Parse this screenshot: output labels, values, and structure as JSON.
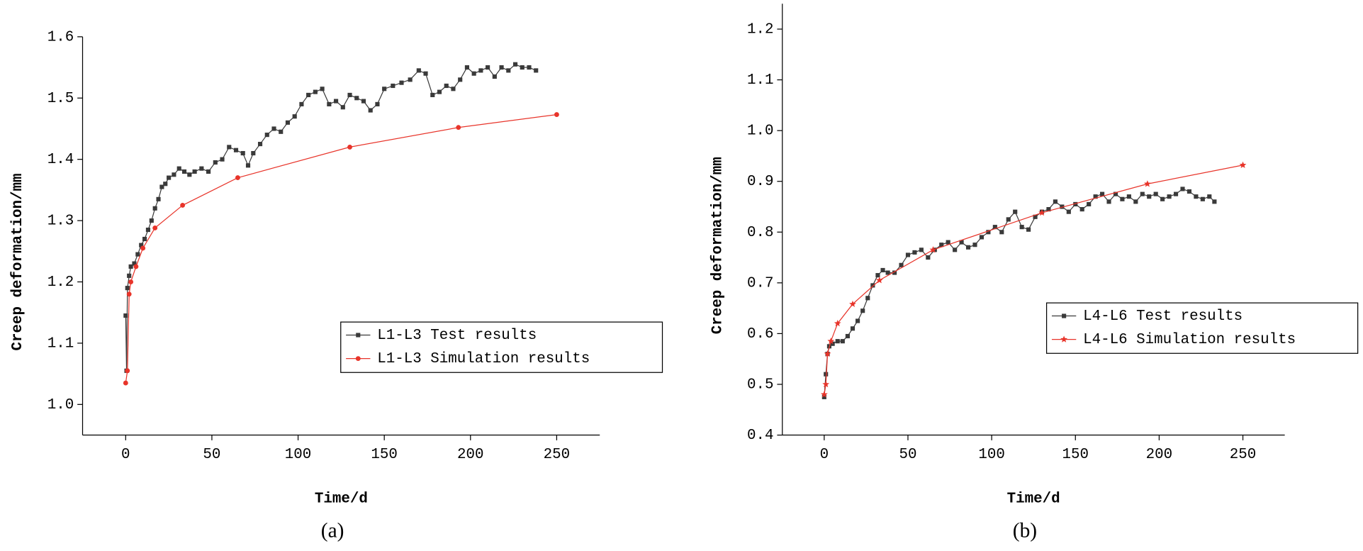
{
  "chart_data": [
    {
      "type": "line",
      "caption": "(a)",
      "xlabel": "Time/d",
      "ylabel": "Creep deformation/mm",
      "xlim": [
        -25,
        275
      ],
      "ylim": [
        0.95,
        1.6
      ],
      "xticks": [
        0,
        50,
        100,
        150,
        200,
        250
      ],
      "yticks": [
        {
          "value": 1,
          "label": "1.0"
        },
        1.1,
        1.2,
        1.3,
        1.4,
        1.5,
        1.6
      ],
      "legend": "center right",
      "series": [
        {
          "name": "L1-L3 Test results",
          "color": "#3a3a3a",
          "marker": "square",
          "x": [
            0,
            0.5,
            1,
            2,
            3,
            5,
            7,
            9,
            11,
            13,
            15,
            17,
            19,
            21,
            23,
            25,
            28,
            31,
            34,
            37,
            40,
            44,
            48,
            52,
            56,
            60,
            64,
            68,
            71,
            74,
            78,
            82,
            86,
            90,
            94,
            98,
            102,
            106,
            110,
            114,
            118,
            122,
            126,
            130,
            134,
            138,
            142,
            146,
            150,
            155,
            160,
            165,
            170,
            174,
            178,
            182,
            186,
            190,
            194,
            198,
            202,
            206,
            210,
            214,
            218,
            222,
            226,
            230,
            234,
            238
          ],
          "values": [
            1.145,
            1.055,
            1.19,
            1.21,
            1.225,
            1.23,
            1.245,
            1.26,
            1.27,
            1.285,
            1.3,
            1.32,
            1.335,
            1.355,
            1.36,
            1.37,
            1.375,
            1.385,
            1.38,
            1.375,
            1.38,
            1.385,
            1.38,
            1.395,
            1.4,
            1.42,
            1.415,
            1.41,
            1.39,
            1.41,
            1.425,
            1.44,
            1.45,
            1.445,
            1.46,
            1.47,
            1.49,
            1.505,
            1.51,
            1.515,
            1.49,
            1.495,
            1.485,
            1.505,
            1.5,
            1.495,
            1.48,
            1.49,
            1.515,
            1.52,
            1.525,
            1.53,
            1.545,
            1.54,
            1.505,
            1.51,
            1.52,
            1.515,
            1.53,
            1.55,
            1.54,
            1.545,
            1.55,
            1.535,
            1.55,
            1.545,
            1.555,
            1.55,
            1.55,
            1.545
          ]
        },
        {
          "name": "L1-L3 Simulation results",
          "color": "#e8342a",
          "marker": "circle",
          "x": [
            0,
            1,
            2,
            3,
            6,
            10,
            17,
            33,
            65,
            130,
            193,
            250
          ],
          "values": [
            1.035,
            1.055,
            1.18,
            1.2,
            1.225,
            1.255,
            1.288,
            1.325,
            1.37,
            1.42,
            1.452,
            1.473
          ]
        }
      ]
    },
    {
      "type": "line",
      "caption": "(b)",
      "xlabel": "Time/d",
      "ylabel": "Creep deformation/mm",
      "xlim": [
        -25,
        275
      ],
      "ylim": [
        0.4,
        1.25
      ],
      "xticks": [
        0,
        50,
        100,
        150,
        200,
        250
      ],
      "yticks": [
        0.4,
        0.5,
        0.6,
        0.7,
        0.8,
        0.9,
        {
          "value": 1,
          "label": "1.0"
        },
        1.1,
        1.2
      ],
      "legend": "center right",
      "series": [
        {
          "name": "L4-L6 Test results",
          "color": "#3a3a3a",
          "marker": "square",
          "x": [
            0,
            1,
            2,
            3,
            5,
            8,
            11,
            14,
            17,
            20,
            23,
            26,
            29,
            32,
            35,
            38,
            42,
            46,
            50,
            54,
            58,
            62,
            66,
            70,
            74,
            78,
            82,
            86,
            90,
            94,
            98,
            102,
            106,
            110,
            114,
            118,
            122,
            126,
            130,
            134,
            138,
            142,
            146,
            150,
            154,
            158,
            162,
            166,
            170,
            174,
            178,
            182,
            186,
            190,
            194,
            198,
            202,
            206,
            210,
            214,
            218,
            222,
            226,
            230,
            233
          ],
          "values": [
            0.475,
            0.52,
            0.56,
            0.575,
            0.58,
            0.585,
            0.585,
            0.595,
            0.61,
            0.625,
            0.645,
            0.67,
            0.695,
            0.715,
            0.725,
            0.72,
            0.72,
            0.735,
            0.755,
            0.76,
            0.765,
            0.75,
            0.765,
            0.775,
            0.78,
            0.765,
            0.78,
            0.77,
            0.775,
            0.79,
            0.8,
            0.81,
            0.8,
            0.825,
            0.84,
            0.81,
            0.805,
            0.83,
            0.84,
            0.845,
            0.86,
            0.85,
            0.84,
            0.855,
            0.845,
            0.855,
            0.87,
            0.875,
            0.86,
            0.875,
            0.865,
            0.87,
            0.86,
            0.875,
            0.87,
            0.875,
            0.865,
            0.87,
            0.875,
            0.885,
            0.88,
            0.87,
            0.865,
            0.87,
            0.86
          ]
        },
        {
          "name": "L4-L6 Simulation results",
          "color": "#e8342a",
          "marker": "star",
          "x": [
            0,
            1,
            2,
            4,
            8,
            17,
            33,
            65,
            130,
            193,
            250
          ],
          "values": [
            0.48,
            0.5,
            0.56,
            0.585,
            0.62,
            0.658,
            0.705,
            0.765,
            0.838,
            0.895,
            0.932
          ]
        }
      ]
    }
  ]
}
